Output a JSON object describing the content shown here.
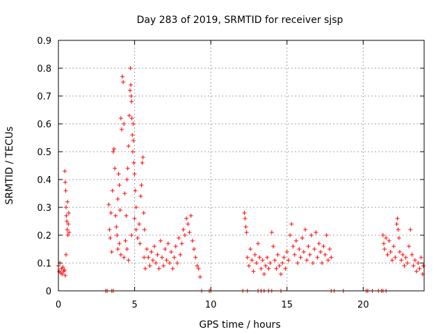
{
  "chart_data": {
    "type": "scatter",
    "title": "Day 283 of 2019, SRMTID for receiver sjsp",
    "xlabel": "GPS time / hours",
    "ylabel": "SRMTID / TECUs",
    "xlim": [
      0,
      24
    ],
    "ylim": [
      0,
      0.9
    ],
    "xticks": [
      0,
      5,
      10,
      15,
      20
    ],
    "yticks": [
      0,
      0.1,
      0.2,
      0.3,
      0.4,
      0.5,
      0.6,
      0.7,
      0.8,
      0.9
    ],
    "xtick_labels": [
      "0",
      "5",
      "10",
      "15",
      "20"
    ],
    "ytick_labels": [
      "0",
      "0.1",
      "0.2",
      "0.3",
      "0.4",
      "0.5",
      "0.6",
      "0.7",
      "0.8",
      "0.9"
    ],
    "grid": true,
    "marker": "plus",
    "color": "#ff0000",
    "series": [
      {
        "name": "SRMTID",
        "points": [
          [
            0.0,
            0.09
          ],
          [
            0.05,
            0.07
          ],
          [
            0.1,
            0.1
          ],
          [
            0.15,
            0.065
          ],
          [
            0.2,
            0.08
          ],
          [
            0.25,
            0.06
          ],
          [
            0.3,
            0.085
          ],
          [
            0.35,
            0.07
          ],
          [
            0.4,
            0.075
          ],
          [
            0.45,
            0.055
          ],
          [
            0.42,
            0.43
          ],
          [
            0.45,
            0.39
          ],
          [
            0.48,
            0.36
          ],
          [
            0.5,
            0.3
          ],
          [
            0.52,
            0.27
          ],
          [
            0.55,
            0.25
          ],
          [
            0.58,
            0.22
          ],
          [
            0.6,
            0.32
          ],
          [
            0.62,
            0.2
          ],
          [
            0.65,
            0.24
          ],
          [
            0.68,
            0.28
          ],
          [
            0.7,
            0.21
          ],
          [
            0.5,
            0.13
          ],
          [
            3.3,
            0.31
          ],
          [
            3.35,
            0.22
          ],
          [
            3.4,
            0.19
          ],
          [
            3.45,
            0.28
          ],
          [
            3.5,
            0.14
          ],
          [
            3.55,
            0.36
          ],
          [
            3.6,
            0.5
          ],
          [
            3.65,
            0.51
          ],
          [
            3.7,
            0.44
          ],
          [
            3.75,
            0.27
          ],
          [
            3.8,
            0.23
          ],
          [
            3.85,
            0.2
          ],
          [
            3.9,
            0.33
          ],
          [
            3.95,
            0.42
          ],
          [
            4.0,
            0.38
          ],
          [
            4.05,
            0.29
          ],
          [
            4.1,
            0.62
          ],
          [
            4.15,
            0.58
          ],
          [
            4.2,
            0.77
          ],
          [
            4.25,
            0.75
          ],
          [
            4.3,
            0.6
          ],
          [
            4.35,
            0.35
          ],
          [
            4.4,
            0.18
          ],
          [
            4.45,
            0.27
          ],
          [
            4.5,
            0.4
          ],
          [
            4.55,
            0.44
          ],
          [
            4.6,
            0.52
          ],
          [
            4.65,
            0.63
          ],
          [
            4.7,
            0.72
          ],
          [
            4.72,
            0.8
          ],
          [
            4.75,
            0.74
          ],
          [
            4.78,
            0.7
          ],
          [
            4.8,
            0.68
          ],
          [
            4.82,
            0.62
          ],
          [
            4.85,
            0.56
          ],
          [
            4.88,
            0.5
          ],
          [
            4.9,
            0.6
          ],
          [
            4.92,
            0.54
          ],
          [
            4.95,
            0.46
          ],
          [
            5.0,
            0.42
          ],
          [
            5.05,
            0.36
          ],
          [
            5.1,
            0.3
          ],
          [
            3.9,
            0.15
          ],
          [
            4.0,
            0.17
          ],
          [
            4.1,
            0.13
          ],
          [
            4.3,
            0.12
          ],
          [
            4.5,
            0.15
          ],
          [
            4.6,
            0.11
          ],
          [
            4.8,
            0.2
          ],
          [
            5.0,
            0.26
          ],
          [
            5.1,
            0.22
          ],
          [
            5.2,
            0.19
          ],
          [
            5.3,
            0.24
          ],
          [
            5.35,
            0.17
          ],
          [
            5.4,
            0.34
          ],
          [
            5.45,
            0.38
          ],
          [
            5.5,
            0.46
          ],
          [
            5.55,
            0.48
          ],
          [
            5.6,
            0.28
          ],
          [
            5.62,
            0.12
          ],
          [
            5.65,
            0.22
          ],
          [
            5.7,
            0.08
          ],
          [
            5.8,
            0.15
          ],
          [
            5.9,
            0.12
          ],
          [
            6.0,
            0.09
          ],
          [
            6.1,
            0.14
          ],
          [
            6.2,
            0.11
          ],
          [
            6.3,
            0.16
          ],
          [
            6.4,
            0.1
          ],
          [
            6.5,
            0.13
          ],
          [
            6.6,
            0.08
          ],
          [
            6.7,
            0.18
          ],
          [
            6.8,
            0.12
          ],
          [
            6.9,
            0.09
          ],
          [
            7.0,
            0.15
          ],
          [
            7.1,
            0.11
          ],
          [
            7.2,
            0.17
          ],
          [
            7.3,
            0.1
          ],
          [
            7.4,
            0.14
          ],
          [
            7.5,
            0.08
          ],
          [
            7.6,
            0.12
          ],
          [
            7.7,
            0.16
          ],
          [
            7.8,
            0.1
          ],
          [
            7.9,
            0.19
          ],
          [
            8.0,
            0.13
          ],
          [
            8.1,
            0.17
          ],
          [
            8.2,
            0.22
          ],
          [
            8.3,
            0.2
          ],
          [
            8.4,
            0.26
          ],
          [
            8.5,
            0.24
          ],
          [
            8.6,
            0.21
          ],
          [
            8.7,
            0.27
          ],
          [
            8.8,
            0.18
          ],
          [
            8.9,
            0.15
          ],
          [
            9.0,
            0.12
          ],
          [
            9.1,
            0.09
          ],
          [
            9.2,
            0.08
          ],
          [
            9.3,
            0.05
          ],
          [
            12.2,
            0.28
          ],
          [
            12.25,
            0.26
          ],
          [
            12.3,
            0.23
          ],
          [
            12.35,
            0.21
          ],
          [
            12.4,
            0.12
          ],
          [
            12.5,
            0.09
          ],
          [
            12.6,
            0.15
          ],
          [
            12.7,
            0.11
          ],
          [
            12.8,
            0.07
          ],
          [
            12.9,
            0.13
          ],
          [
            13.0,
            0.1
          ],
          [
            13.1,
            0.17
          ],
          [
            13.2,
            0.12
          ],
          [
            13.3,
            0.08
          ],
          [
            13.4,
            0.11
          ],
          [
            13.5,
            0.06
          ],
          [
            13.6,
            0.09
          ],
          [
            13.7,
            0.12
          ],
          [
            13.8,
            0.08
          ],
          [
            13.9,
            0.1
          ],
          [
            14.0,
            0.21
          ],
          [
            14.1,
            0.16
          ],
          [
            14.2,
            0.11
          ],
          [
            14.3,
            0.08
          ],
          [
            14.4,
            0.13
          ],
          [
            14.5,
            0.09
          ],
          [
            14.6,
            0.06
          ],
          [
            14.7,
            0.1
          ],
          [
            14.8,
            0.12
          ],
          [
            14.9,
            0.08
          ],
          [
            15.0,
            0.14
          ],
          [
            15.1,
            0.11
          ],
          [
            15.2,
            0.2
          ],
          [
            15.3,
            0.24
          ],
          [
            15.4,
            0.16
          ],
          [
            15.5,
            0.13
          ],
          [
            15.6,
            0.18
          ],
          [
            15.7,
            0.1
          ],
          [
            15.8,
            0.15
          ],
          [
            15.9,
            0.12
          ],
          [
            16.0,
            0.19
          ],
          [
            16.1,
            0.14
          ],
          [
            16.2,
            0.22
          ],
          [
            16.3,
            0.11
          ],
          [
            16.4,
            0.16
          ],
          [
            16.5,
            0.13
          ],
          [
            16.6,
            0.2
          ],
          [
            16.7,
            0.1
          ],
          [
            16.8,
            0.15
          ],
          [
            16.9,
            0.21
          ],
          [
            17.0,
            0.12
          ],
          [
            17.1,
            0.17
          ],
          [
            17.2,
            0.14
          ],
          [
            17.3,
            0.1
          ],
          [
            17.4,
            0.16
          ],
          [
            17.5,
            0.13
          ],
          [
            17.6,
            0.2
          ],
          [
            17.7,
            0.11
          ],
          [
            17.8,
            0.15
          ],
          [
            17.9,
            0.12
          ],
          [
            21.3,
            0.2
          ],
          [
            21.35,
            0.17
          ],
          [
            21.4,
            0.15
          ],
          [
            21.5,
            0.19
          ],
          [
            21.6,
            0.13
          ],
          [
            21.7,
            0.18
          ],
          [
            21.8,
            0.14
          ],
          [
            21.9,
            0.11
          ],
          [
            22.0,
            0.16
          ],
          [
            22.1,
            0.12
          ],
          [
            22.2,
            0.24
          ],
          [
            22.25,
            0.26
          ],
          [
            22.3,
            0.22
          ],
          [
            22.35,
            0.19
          ],
          [
            22.4,
            0.14
          ],
          [
            22.5,
            0.11
          ],
          [
            22.6,
            0.13
          ],
          [
            22.7,
            0.09
          ],
          [
            22.8,
            0.12
          ],
          [
            22.9,
            0.1
          ],
          [
            23.0,
            0.16
          ],
          [
            23.1,
            0.22
          ],
          [
            23.2,
            0.13
          ],
          [
            23.3,
            0.09
          ],
          [
            23.4,
            0.11
          ],
          [
            23.5,
            0.07
          ],
          [
            23.6,
            0.1
          ],
          [
            23.7,
            0.08
          ],
          [
            23.8,
            0.12
          ],
          [
            23.9,
            0.06
          ],
          [
            23.95,
            0.09
          ],
          [
            3.1,
            0
          ],
          [
            3.2,
            0
          ],
          [
            3.5,
            0
          ],
          [
            3.6,
            0
          ],
          [
            9.4,
            0
          ],
          [
            9.9,
            0
          ],
          [
            10.0,
            0
          ],
          [
            12.1,
            0
          ],
          [
            12.4,
            0
          ],
          [
            13.1,
            0
          ],
          [
            13.3,
            0
          ],
          [
            13.5,
            0
          ],
          [
            13.8,
            0
          ],
          [
            14.0,
            0
          ],
          [
            14.6,
            0
          ],
          [
            17.9,
            0
          ],
          [
            18.1,
            0
          ],
          [
            18.7,
            0
          ],
          [
            20.2,
            0
          ],
          [
            20.3,
            0
          ],
          [
            20.6,
            0
          ],
          [
            21.0,
            0
          ],
          [
            21.2,
            0
          ],
          [
            21.3,
            0
          ],
          [
            21.5,
            0
          ]
        ]
      }
    ]
  }
}
